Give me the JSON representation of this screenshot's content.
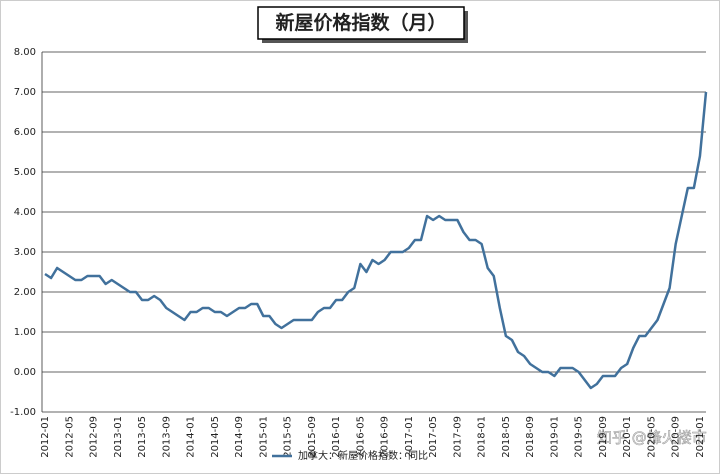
{
  "chart_data": {
    "type": "line",
    "title": "新屋价格指数（月）",
    "categories": [
      "2012-01",
      null,
      null,
      null,
      "2012-05",
      null,
      null,
      null,
      "2012-09",
      null,
      null,
      null,
      "2013-01",
      null,
      null,
      null,
      "2013-05",
      null,
      null,
      null,
      "2013-09",
      null,
      null,
      null,
      "2014-01",
      null,
      null,
      null,
      "2014-05",
      null,
      null,
      null,
      "2014-09",
      null,
      null,
      null,
      "2015-01",
      null,
      null,
      null,
      "2015-05",
      null,
      null,
      null,
      "2015-09",
      null,
      null,
      null,
      "2016-01",
      null,
      null,
      null,
      "2016-05",
      null,
      null,
      null,
      "2016-09",
      null,
      null,
      null,
      "2017-01",
      null,
      null,
      null,
      "2017-05",
      null,
      null,
      null,
      "2017-09",
      null,
      null,
      null,
      "2018-01",
      null,
      null,
      null,
      "2018-05",
      null,
      null,
      null,
      "2018-09",
      null,
      null,
      null,
      "2019-01",
      null,
      null,
      null,
      "2019-05",
      null,
      null,
      null,
      "2019-09",
      null,
      null,
      null,
      "2020-01",
      null,
      null,
      null,
      "2020-05",
      null,
      null,
      null,
      "2020-09",
      null,
      null,
      null,
      "2021-01",
      null
    ],
    "series": [
      {
        "name": "加拿大：新屋价格指数：同比",
        "color": "#41719c",
        "values": [
          2.45,
          2.35,
          2.6,
          2.5,
          2.4,
          2.3,
          2.3,
          2.4,
          2.4,
          2.4,
          2.2,
          2.3,
          2.2,
          2.1,
          2.0,
          2.0,
          1.8,
          1.8,
          1.9,
          1.8,
          1.6,
          1.5,
          1.4,
          1.3,
          1.5,
          1.5,
          1.6,
          1.6,
          1.5,
          1.5,
          1.4,
          1.5,
          1.6,
          1.6,
          1.7,
          1.7,
          1.4,
          1.4,
          1.2,
          1.1,
          1.2,
          1.3,
          1.3,
          1.3,
          1.3,
          1.5,
          1.6,
          1.6,
          1.8,
          1.8,
          2.0,
          2.1,
          2.7,
          2.5,
          2.8,
          2.7,
          2.8,
          3.0,
          3.0,
          3.0,
          3.1,
          3.3,
          3.3,
          3.9,
          3.8,
          3.9,
          3.8,
          3.8,
          3.8,
          3.5,
          3.3,
          3.3,
          3.2,
          2.6,
          2.4,
          1.6,
          0.9,
          0.8,
          0.5,
          0.4,
          0.2,
          0.1,
          0.0,
          0.0,
          -0.1,
          0.1,
          0.1,
          0.1,
          0.0,
          -0.2,
          -0.4,
          -0.3,
          -0.1,
          -0.1,
          -0.1,
          0.1,
          0.2,
          0.6,
          0.9,
          0.9,
          1.1,
          1.3,
          1.7,
          2.1,
          3.2,
          3.9,
          4.6,
          4.6,
          5.4,
          7.0
        ]
      }
    ],
    "ylim": [
      -1,
      8
    ],
    "yticks": [
      {
        "value": -1,
        "label": "-1.00"
      },
      {
        "value": 0,
        "label": "0.00"
      },
      {
        "value": 1,
        "label": "1.00"
      },
      {
        "value": 2,
        "label": "2.00"
      },
      {
        "value": 3,
        "label": "3.00"
      },
      {
        "value": 4,
        "label": "4.00"
      },
      {
        "value": 5,
        "label": "5.00"
      },
      {
        "value": 6,
        "label": "6.00"
      },
      {
        "value": 7,
        "label": "7.00"
      },
      {
        "value": 8,
        "label": "8.00"
      }
    ],
    "grid": true,
    "legend": "bottom",
    "watermark": "知乎 @烽火楼市"
  }
}
